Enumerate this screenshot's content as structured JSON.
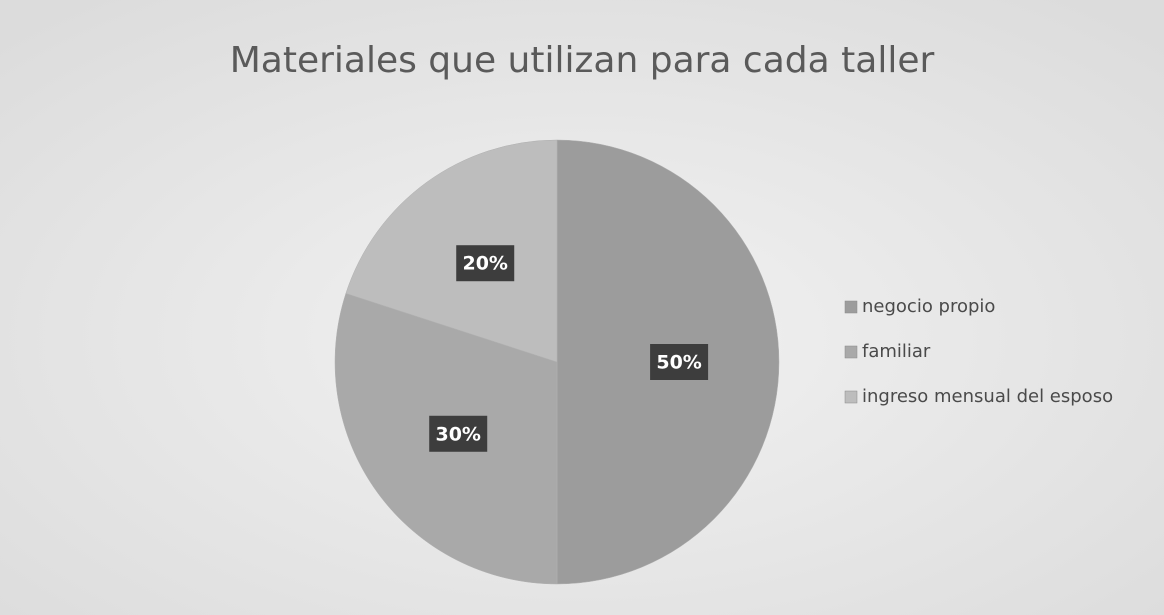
{
  "chart_data": {
    "type": "pie",
    "title": "Materiales que utilizan para cada taller",
    "categories": [
      "negocio propio",
      "familiar",
      "ingreso mensual del esposo"
    ],
    "values": [
      50,
      30,
      20
    ],
    "value_labels": [
      "50%",
      "30%",
      "20%"
    ],
    "colors": [
      "#9c9c9c",
      "#a9a9a9",
      "#bdbdbd"
    ],
    "legend": "right"
  }
}
